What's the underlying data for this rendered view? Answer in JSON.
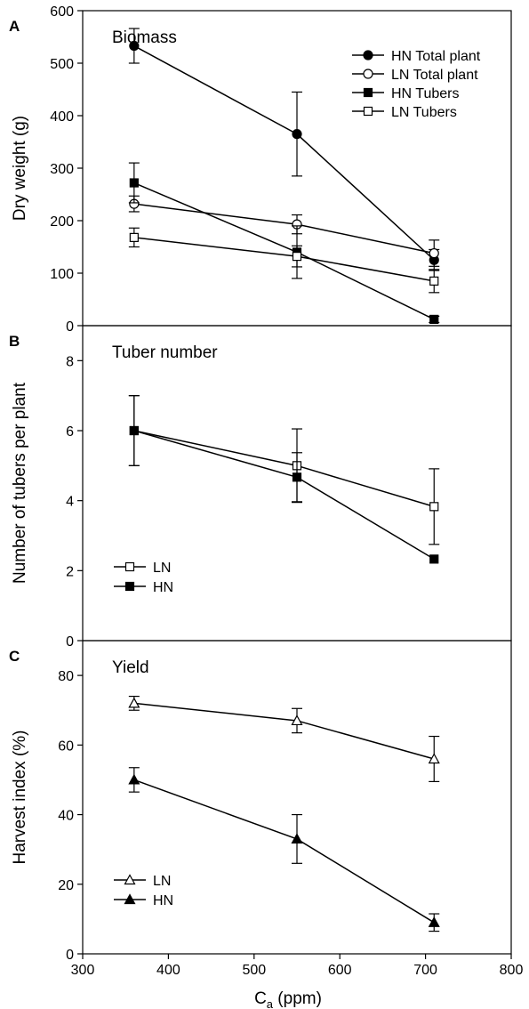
{
  "figure": {
    "x_axis": {
      "label_main": "C",
      "label_sub": "a",
      "label_rest": " (ppm)",
      "range": [
        300,
        800
      ],
      "ticks": [
        300,
        400,
        500,
        600,
        700,
        800
      ]
    }
  },
  "chart_data": [
    {
      "panel_letter": "A",
      "type": "line",
      "title": "Biomass",
      "ylabel": "Dry weight (g)",
      "ylim": [
        0,
        600
      ],
      "yticks": [
        0,
        100,
        200,
        300,
        400,
        500,
        600
      ],
      "xlim": [
        300,
        800
      ],
      "legend_position": "top-right",
      "series": [
        {
          "name": "HN Total plant",
          "marker": "circle",
          "fill": "filled",
          "x": [
            360,
            550,
            710
          ],
          "y": [
            533,
            365,
            125
          ],
          "err": [
            33,
            80,
            20
          ]
        },
        {
          "name": "LN Total plant",
          "marker": "circle",
          "fill": "open",
          "x": [
            360,
            550,
            710
          ],
          "y": [
            232,
            193,
            138
          ],
          "err": [
            15,
            18,
            25
          ]
        },
        {
          "name": "HN Tubers",
          "marker": "square",
          "fill": "filled",
          "x": [
            360,
            550,
            710
          ],
          "y": [
            272,
            140,
            12
          ],
          "err": [
            38,
            50,
            6
          ]
        },
        {
          "name": "LN Tubers",
          "marker": "square",
          "fill": "open",
          "x": [
            360,
            550,
            710
          ],
          "y": [
            168,
            132,
            85
          ],
          "err": [
            18,
            20,
            22
          ]
        }
      ]
    },
    {
      "panel_letter": "B",
      "type": "line",
      "title": "Tuber number",
      "ylabel": "Number of tubers per plant",
      "ylim": [
        0,
        9
      ],
      "yticks": [
        0,
        2,
        4,
        6,
        8
      ],
      "xlim": [
        300,
        800
      ],
      "legend_position": "bottom-left",
      "series": [
        {
          "name": "LN",
          "marker": "square",
          "fill": "open",
          "x": [
            360,
            550,
            710
          ],
          "y": [
            6.0,
            5.0,
            3.83
          ],
          "err": [
            1.0,
            1.05,
            1.08
          ]
        },
        {
          "name": "HN",
          "marker": "square",
          "fill": "filled",
          "x": [
            360,
            550,
            710
          ],
          "y": [
            6.0,
            4.67,
            2.33
          ],
          "err": [
            1.0,
            0.7,
            0
          ]
        }
      ]
    },
    {
      "panel_letter": "C",
      "type": "line",
      "title": "Yield",
      "ylabel": "Harvest index (%)",
      "ylim": [
        0,
        90
      ],
      "yticks": [
        0,
        20,
        40,
        60,
        80
      ],
      "xlim": [
        300,
        800
      ],
      "legend_position": "bottom-left",
      "series": [
        {
          "name": "LN",
          "marker": "triangle",
          "fill": "open",
          "x": [
            360,
            550,
            710
          ],
          "y": [
            72,
            67,
            56
          ],
          "err": [
            2,
            3.5,
            6.5
          ]
        },
        {
          "name": "HN",
          "marker": "triangle",
          "fill": "filled",
          "x": [
            360,
            550,
            710
          ],
          "y": [
            50,
            33,
            9
          ],
          "err": [
            3.5,
            7,
            2.5
          ]
        }
      ]
    }
  ]
}
